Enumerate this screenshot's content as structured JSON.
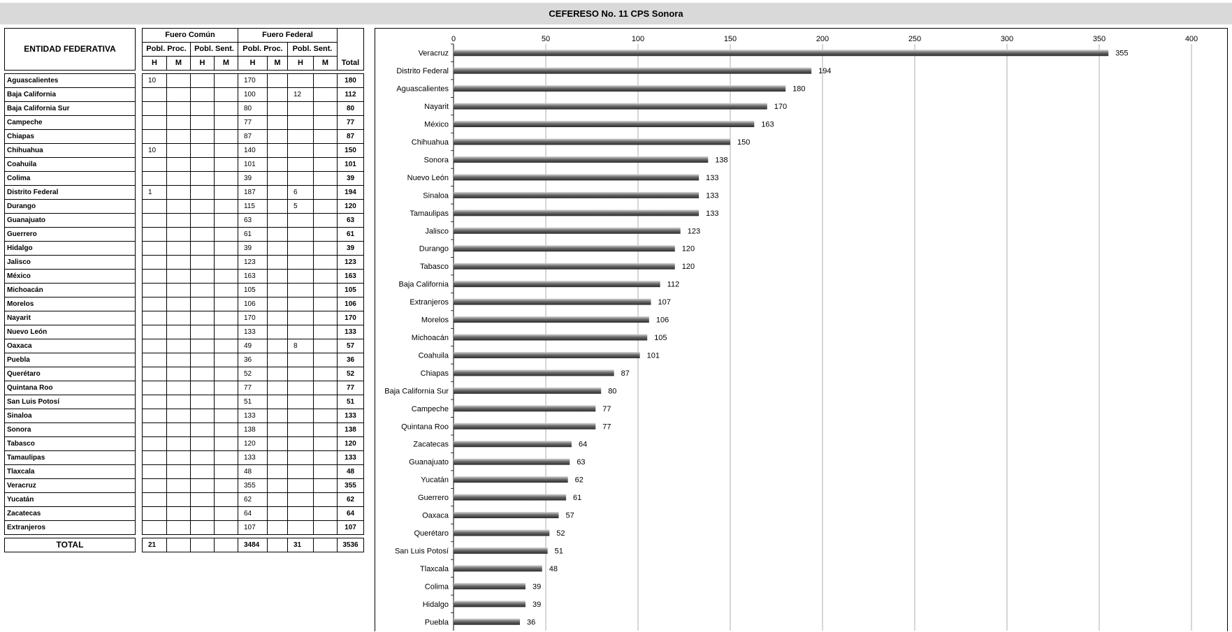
{
  "title": "CEFERESO No. 11 CPS Sonora",
  "table": {
    "col_entity": "ENTIDAD FEDERATIVA",
    "group_comun": "Fuero Común",
    "group_federal": "Fuero Federal",
    "sub_proc": "Pobl. Proc.",
    "sub_sent": "Pobl. Sent.",
    "col_total": "Total",
    "h": "H",
    "m": "M",
    "rows": [
      {
        "name": "Aguascalientes",
        "c_proc_h": "10",
        "c_proc_m": "",
        "c_sent_h": "",
        "c_sent_m": "",
        "f_proc_h": "170",
        "f_proc_m": "",
        "f_sent_h": "",
        "f_sent_m": "",
        "total": "180"
      },
      {
        "name": "Baja California",
        "c_proc_h": "",
        "c_proc_m": "",
        "c_sent_h": "",
        "c_sent_m": "",
        "f_proc_h": "100",
        "f_proc_m": "",
        "f_sent_h": "12",
        "f_sent_m": "",
        "total": "112"
      },
      {
        "name": "Baja California Sur",
        "c_proc_h": "",
        "c_proc_m": "",
        "c_sent_h": "",
        "c_sent_m": "",
        "f_proc_h": "80",
        "f_proc_m": "",
        "f_sent_h": "",
        "f_sent_m": "",
        "total": "80"
      },
      {
        "name": "Campeche",
        "c_proc_h": "",
        "c_proc_m": "",
        "c_sent_h": "",
        "c_sent_m": "",
        "f_proc_h": "77",
        "f_proc_m": "",
        "f_sent_h": "",
        "f_sent_m": "",
        "total": "77"
      },
      {
        "name": "Chiapas",
        "c_proc_h": "",
        "c_proc_m": "",
        "c_sent_h": "",
        "c_sent_m": "",
        "f_proc_h": "87",
        "f_proc_m": "",
        "f_sent_h": "",
        "f_sent_m": "",
        "total": "87"
      },
      {
        "name": "Chihuahua",
        "c_proc_h": "10",
        "c_proc_m": "",
        "c_sent_h": "",
        "c_sent_m": "",
        "f_proc_h": "140",
        "f_proc_m": "",
        "f_sent_h": "",
        "f_sent_m": "",
        "total": "150"
      },
      {
        "name": "Coahuila",
        "c_proc_h": "",
        "c_proc_m": "",
        "c_sent_h": "",
        "c_sent_m": "",
        "f_proc_h": "101",
        "f_proc_m": "",
        "f_sent_h": "",
        "f_sent_m": "",
        "total": "101"
      },
      {
        "name": "Colima",
        "c_proc_h": "",
        "c_proc_m": "",
        "c_sent_h": "",
        "c_sent_m": "",
        "f_proc_h": "39",
        "f_proc_m": "",
        "f_sent_h": "",
        "f_sent_m": "",
        "total": "39"
      },
      {
        "name": "Distrito Federal",
        "c_proc_h": "1",
        "c_proc_m": "",
        "c_sent_h": "",
        "c_sent_m": "",
        "f_proc_h": "187",
        "f_proc_m": "",
        "f_sent_h": "6",
        "f_sent_m": "",
        "total": "194"
      },
      {
        "name": "Durango",
        "c_proc_h": "",
        "c_proc_m": "",
        "c_sent_h": "",
        "c_sent_m": "",
        "f_proc_h": "115",
        "f_proc_m": "",
        "f_sent_h": "5",
        "f_sent_m": "",
        "total": "120"
      },
      {
        "name": "Guanajuato",
        "c_proc_h": "",
        "c_proc_m": "",
        "c_sent_h": "",
        "c_sent_m": "",
        "f_proc_h": "63",
        "f_proc_m": "",
        "f_sent_h": "",
        "f_sent_m": "",
        "total": "63"
      },
      {
        "name": "Guerrero",
        "c_proc_h": "",
        "c_proc_m": "",
        "c_sent_h": "",
        "c_sent_m": "",
        "f_proc_h": "61",
        "f_proc_m": "",
        "f_sent_h": "",
        "f_sent_m": "",
        "total": "61"
      },
      {
        "name": "Hidalgo",
        "c_proc_h": "",
        "c_proc_m": "",
        "c_sent_h": "",
        "c_sent_m": "",
        "f_proc_h": "39",
        "f_proc_m": "",
        "f_sent_h": "",
        "f_sent_m": "",
        "total": "39"
      },
      {
        "name": "Jalisco",
        "c_proc_h": "",
        "c_proc_m": "",
        "c_sent_h": "",
        "c_sent_m": "",
        "f_proc_h": "123",
        "f_proc_m": "",
        "f_sent_h": "",
        "f_sent_m": "",
        "total": "123"
      },
      {
        "name": "México",
        "c_proc_h": "",
        "c_proc_m": "",
        "c_sent_h": "",
        "c_sent_m": "",
        "f_proc_h": "163",
        "f_proc_m": "",
        "f_sent_h": "",
        "f_sent_m": "",
        "total": "163"
      },
      {
        "name": "Michoacán",
        "c_proc_h": "",
        "c_proc_m": "",
        "c_sent_h": "",
        "c_sent_m": "",
        "f_proc_h": "105",
        "f_proc_m": "",
        "f_sent_h": "",
        "f_sent_m": "",
        "total": "105"
      },
      {
        "name": "Morelos",
        "c_proc_h": "",
        "c_proc_m": "",
        "c_sent_h": "",
        "c_sent_m": "",
        "f_proc_h": "106",
        "f_proc_m": "",
        "f_sent_h": "",
        "f_sent_m": "",
        "total": "106"
      },
      {
        "name": "Nayarit",
        "c_proc_h": "",
        "c_proc_m": "",
        "c_sent_h": "",
        "c_sent_m": "",
        "f_proc_h": "170",
        "f_proc_m": "",
        "f_sent_h": "",
        "f_sent_m": "",
        "total": "170"
      },
      {
        "name": "Nuevo León",
        "c_proc_h": "",
        "c_proc_m": "",
        "c_sent_h": "",
        "c_sent_m": "",
        "f_proc_h": "133",
        "f_proc_m": "",
        "f_sent_h": "",
        "f_sent_m": "",
        "total": "133"
      },
      {
        "name": "Oaxaca",
        "c_proc_h": "",
        "c_proc_m": "",
        "c_sent_h": "",
        "c_sent_m": "",
        "f_proc_h": "49",
        "f_proc_m": "",
        "f_sent_h": "8",
        "f_sent_m": "",
        "total": "57"
      },
      {
        "name": "Puebla",
        "c_proc_h": "",
        "c_proc_m": "",
        "c_sent_h": "",
        "c_sent_m": "",
        "f_proc_h": "36",
        "f_proc_m": "",
        "f_sent_h": "",
        "f_sent_m": "",
        "total": "36"
      },
      {
        "name": "Querétaro",
        "c_proc_h": "",
        "c_proc_m": "",
        "c_sent_h": "",
        "c_sent_m": "",
        "f_proc_h": "52",
        "f_proc_m": "",
        "f_sent_h": "",
        "f_sent_m": "",
        "total": "52"
      },
      {
        "name": "Quintana Roo",
        "c_proc_h": "",
        "c_proc_m": "",
        "c_sent_h": "",
        "c_sent_m": "",
        "f_proc_h": "77",
        "f_proc_m": "",
        "f_sent_h": "",
        "f_sent_m": "",
        "total": "77"
      },
      {
        "name": "San Luis Potosí",
        "c_proc_h": "",
        "c_proc_m": "",
        "c_sent_h": "",
        "c_sent_m": "",
        "f_proc_h": "51",
        "f_proc_m": "",
        "f_sent_h": "",
        "f_sent_m": "",
        "total": "51"
      },
      {
        "name": "Sinaloa",
        "c_proc_h": "",
        "c_proc_m": "",
        "c_sent_h": "",
        "c_sent_m": "",
        "f_proc_h": "133",
        "f_proc_m": "",
        "f_sent_h": "",
        "f_sent_m": "",
        "total": "133"
      },
      {
        "name": "Sonora",
        "c_proc_h": "",
        "c_proc_m": "",
        "c_sent_h": "",
        "c_sent_m": "",
        "f_proc_h": "138",
        "f_proc_m": "",
        "f_sent_h": "",
        "f_sent_m": "",
        "total": "138"
      },
      {
        "name": "Tabasco",
        "c_proc_h": "",
        "c_proc_m": "",
        "c_sent_h": "",
        "c_sent_m": "",
        "f_proc_h": "120",
        "f_proc_m": "",
        "f_sent_h": "",
        "f_sent_m": "",
        "total": "120"
      },
      {
        "name": "Tamaulipas",
        "c_proc_h": "",
        "c_proc_m": "",
        "c_sent_h": "",
        "c_sent_m": "",
        "f_proc_h": "133",
        "f_proc_m": "",
        "f_sent_h": "",
        "f_sent_m": "",
        "total": "133"
      },
      {
        "name": "Tlaxcala",
        "c_proc_h": "",
        "c_proc_m": "",
        "c_sent_h": "",
        "c_sent_m": "",
        "f_proc_h": "48",
        "f_proc_m": "",
        "f_sent_h": "",
        "f_sent_m": "",
        "total": "48"
      },
      {
        "name": "Veracruz",
        "c_proc_h": "",
        "c_proc_m": "",
        "c_sent_h": "",
        "c_sent_m": "",
        "f_proc_h": "355",
        "f_proc_m": "",
        "f_sent_h": "",
        "f_sent_m": "",
        "total": "355"
      },
      {
        "name": "Yucatán",
        "c_proc_h": "",
        "c_proc_m": "",
        "c_sent_h": "",
        "c_sent_m": "",
        "f_proc_h": "62",
        "f_proc_m": "",
        "f_sent_h": "",
        "f_sent_m": "",
        "total": "62"
      },
      {
        "name": "Zacatecas",
        "c_proc_h": "",
        "c_proc_m": "",
        "c_sent_h": "",
        "c_sent_m": "",
        "f_proc_h": "64",
        "f_proc_m": "",
        "f_sent_h": "",
        "f_sent_m": "",
        "total": "64"
      },
      {
        "name": "Extranjeros",
        "c_proc_h": "",
        "c_proc_m": "",
        "c_sent_h": "",
        "c_sent_m": "",
        "f_proc_h": "107",
        "f_proc_m": "",
        "f_sent_h": "",
        "f_sent_m": "",
        "total": "107"
      }
    ],
    "totals": {
      "name": "TOTAL",
      "c_proc_h": "21",
      "c_proc_m": "",
      "c_sent_h": "",
      "c_sent_m": "",
      "f_proc_h": "3484",
      "f_proc_m": "",
      "f_sent_h": "31",
      "f_sent_m": "",
      "total": "3536"
    }
  },
  "chart_data": {
    "type": "bar",
    "orientation": "horizontal",
    "title": "",
    "xlabel": "",
    "ylabel": "",
    "xlim": [
      0,
      400
    ],
    "x_ticks": [
      0,
      50,
      100,
      150,
      200,
      250,
      300,
      350,
      400
    ],
    "x_axis_position": "top",
    "grid": true,
    "bar_color": "#6e6e6e",
    "categories": [
      "Veracruz",
      "Distrito Federal",
      "Aguascalientes",
      "Nayarit",
      "México",
      "Chihuahua",
      "Sonora",
      "Nuevo León",
      "Sinaloa",
      "Tamaulipas",
      "Jalisco",
      "Durango",
      "Tabasco",
      "Baja California",
      "Extranjeros",
      "Morelos",
      "Michoacán",
      "Coahuila",
      "Chiapas",
      "Baja California Sur",
      "Campeche",
      "Quintana Roo",
      "Zacatecas",
      "Guanajuato",
      "Yucatán",
      "Guerrero",
      "Oaxaca",
      "Querétaro",
      "San Luis Potosí",
      "Tlaxcala",
      "Colima",
      "Hidalgo",
      "Puebla"
    ],
    "values": [
      355,
      194,
      180,
      170,
      163,
      150,
      138,
      133,
      133,
      133,
      123,
      120,
      120,
      112,
      107,
      106,
      105,
      101,
      87,
      80,
      77,
      77,
      64,
      63,
      62,
      61,
      57,
      52,
      51,
      48,
      39,
      39,
      36
    ]
  }
}
